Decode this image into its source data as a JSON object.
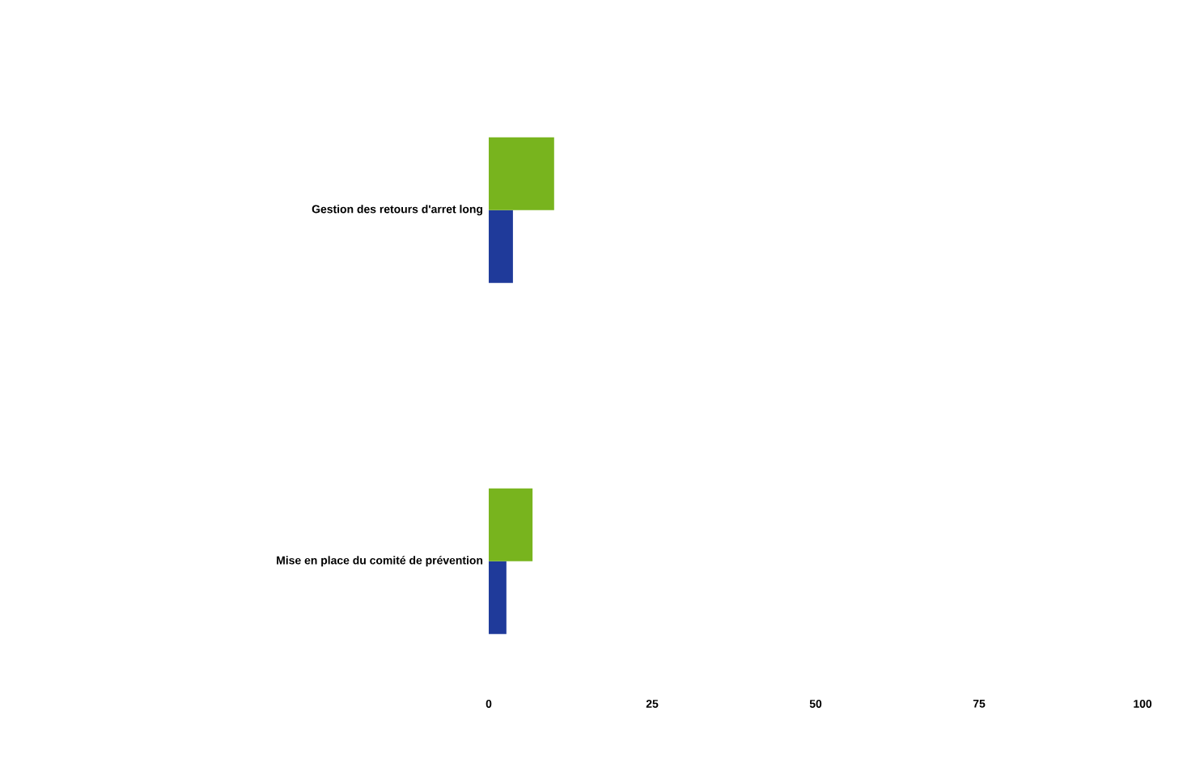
{
  "chart_data": {
    "type": "bar",
    "orientation": "horizontal",
    "categories": [
      "Gestion des retours d'arret long",
      "Mise en place du comité de prévention"
    ],
    "series": [
      {
        "color": "#78b41e",
        "values": [
          10,
          6.7
        ]
      },
      {
        "color": "#1f3a9a",
        "values": [
          3.7,
          2.7
        ]
      }
    ],
    "xlim": [
      0,
      100
    ],
    "xticks": [
      0,
      25,
      50,
      75,
      100
    ]
  }
}
